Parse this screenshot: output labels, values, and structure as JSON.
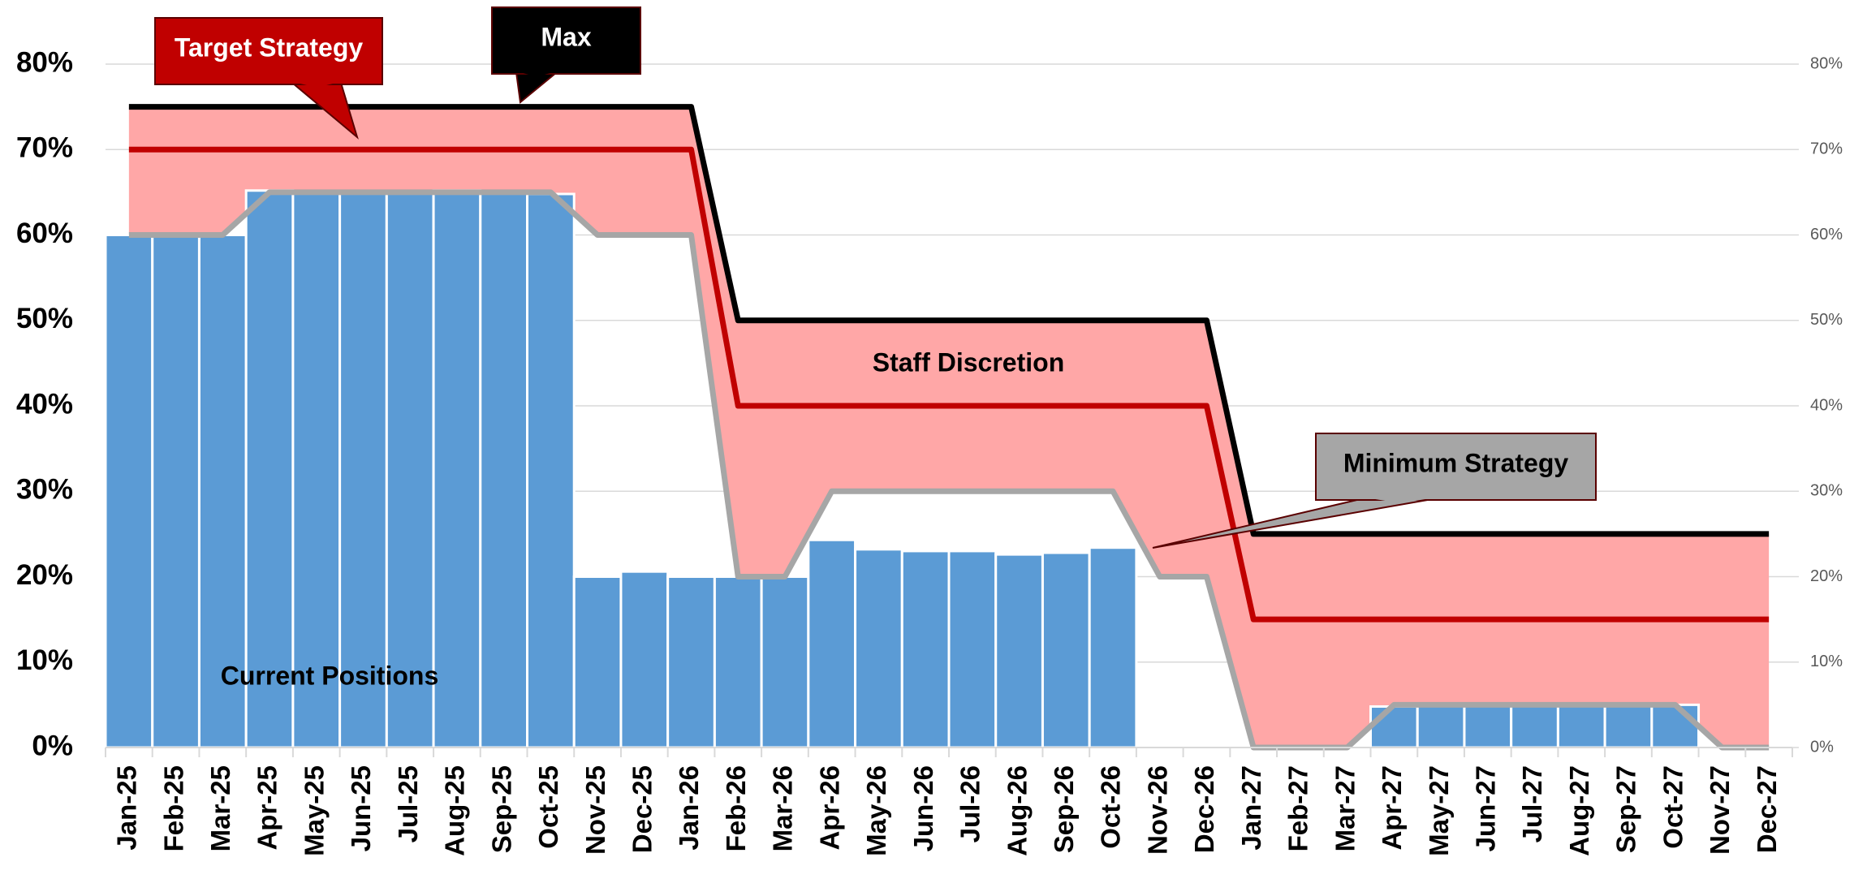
{
  "chart_data": {
    "type": "bar",
    "categories": [
      "Jan-25",
      "Feb-25",
      "Mar-25",
      "Apr-25",
      "May-25",
      "Jun-25",
      "Jul-25",
      "Aug-25",
      "Sep-25",
      "Oct-25",
      "Nov-25",
      "Dec-25",
      "Jan-26",
      "Feb-26",
      "Mar-26",
      "Apr-26",
      "May-26",
      "Jun-26",
      "Jul-26",
      "Aug-26",
      "Sep-26",
      "Oct-26",
      "Nov-26",
      "Dec-26",
      "Jan-27",
      "Feb-27",
      "Mar-27",
      "Apr-27",
      "May-27",
      "Jun-27",
      "Jul-27",
      "Aug-27",
      "Sep-27",
      "Oct-27",
      "Nov-27",
      "Dec-27"
    ],
    "series": [
      {
        "name": "Current Positions",
        "type": "bar",
        "color": "#5b9bd5",
        "values": [
          60,
          60,
          60,
          65.2,
          65,
          65,
          65,
          65.2,
          65,
          64.8,
          20,
          20.6,
          20,
          20,
          20,
          24.3,
          23.2,
          23,
          23,
          22.6,
          22.8,
          23.4,
          null,
          null,
          null,
          null,
          null,
          4.8,
          5,
          5,
          5,
          4.9,
          5,
          5,
          null,
          null
        ]
      },
      {
        "name": "Max",
        "type": "line",
        "color": "#000000",
        "values": [
          75,
          75,
          75,
          75,
          75,
          75,
          75,
          75,
          75,
          75,
          75,
          75,
          75,
          50,
          50,
          50,
          50,
          50,
          50,
          50,
          50,
          50,
          50,
          50,
          25,
          25,
          25,
          25,
          25,
          25,
          25,
          25,
          25,
          25,
          25,
          25
        ]
      },
      {
        "name": "Target Strategy",
        "type": "line",
        "color": "#c00000",
        "values": [
          70,
          70,
          70,
          70,
          70,
          70,
          70,
          70,
          70,
          70,
          70,
          70,
          70,
          40,
          40,
          40,
          40,
          40,
          40,
          40,
          40,
          40,
          40,
          40,
          15,
          15,
          15,
          15,
          15,
          15,
          15,
          15,
          15,
          15,
          15,
          15
        ]
      },
      {
        "name": "Minimum Strategy",
        "type": "line",
        "color": "#a6a6a6",
        "values": [
          60,
          60,
          60,
          65,
          65,
          65,
          65,
          65,
          65,
          65,
          60,
          60,
          60,
          20,
          20,
          30,
          30,
          30,
          30,
          30,
          30,
          30,
          20,
          20,
          0,
          0,
          0,
          5,
          5,
          5,
          5,
          5,
          5,
          5,
          0,
          0
        ]
      }
    ],
    "band": {
      "label": "Staff Discretion",
      "color": "#ffa7a7"
    },
    "ylim": [
      0,
      80
    ],
    "yticks": [
      {
        "value": 0,
        "label": "0%"
      },
      {
        "value": 10,
        "label": "10%"
      },
      {
        "value": 20,
        "label": "20%"
      },
      {
        "value": 30,
        "label": "30%"
      },
      {
        "value": 40,
        "label": "40%"
      },
      {
        "value": 50,
        "label": "50%"
      },
      {
        "value": 60,
        "label": "60%"
      },
      {
        "value": 70,
        "label": "70%"
      },
      {
        "value": 80,
        "label": "80%"
      }
    ],
    "y2lim": [
      0,
      80
    ],
    "y2ticks": [
      {
        "value": 0,
        "label": "0%"
      },
      {
        "value": 10,
        "label": "10%"
      },
      {
        "value": 20,
        "label": "20%"
      },
      {
        "value": 30,
        "label": "30%"
      },
      {
        "value": 40,
        "label": "40%"
      },
      {
        "value": 50,
        "label": "50%"
      },
      {
        "value": 60,
        "label": "60%"
      },
      {
        "value": 70,
        "label": "70%"
      },
      {
        "value": 80,
        "label": "80%"
      }
    ],
    "grid": true
  }
}
